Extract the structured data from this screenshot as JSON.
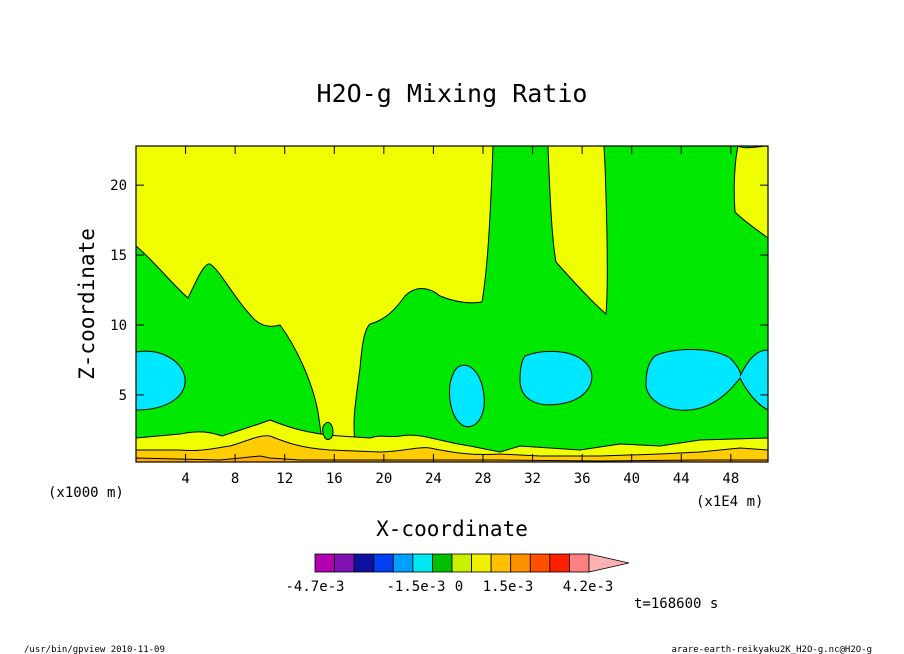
{
  "chart_data": {
    "type": "heatmap",
    "title": "H2O-g Mixing Ratio",
    "xlabel": "X-coordinate",
    "ylabel": "Z-coordinate",
    "x_unit": "(x1E4 m)",
    "y_unit": "(x1000 m)",
    "xlim": [
      0,
      51
    ],
    "ylim": [
      0.2,
      22.8
    ],
    "xticks": [
      4,
      8,
      12,
      16,
      20,
      24,
      28,
      32,
      36,
      40,
      44,
      48
    ],
    "yticks": [
      5,
      10,
      15,
      20
    ],
    "time_label": "t=168600 s",
    "colorbar": {
      "labels": [
        "-4.7e-3",
        "-1.5e-3",
        "0",
        "1.5e-3",
        "4.2e-3"
      ],
      "colors": [
        "#b000b0",
        "#8010b0",
        "#1010a0",
        "#0040f0",
        "#00a0ff",
        "#00e8f0",
        "#00c000",
        "#c8f000",
        "#f0f000",
        "#ffc000",
        "#ff9000",
        "#ff5000",
        "#ff2000",
        "#ff8080",
        "#ffb0b0"
      ]
    },
    "fields": [
      {
        "name": "yellow",
        "color": "#f0ff00"
      },
      {
        "name": "green",
        "color": "#00e800"
      },
      {
        "name": "cyan",
        "color": "#00e8ff"
      },
      {
        "name": "amber",
        "color": "#ffcc00"
      },
      {
        "name": "orange",
        "color": "#ffaa00"
      }
    ]
  },
  "footer": {
    "left": "/usr/bin/gpview  2010-11-09",
    "right": "arare-earth-reikyaku2K_H2O-g.nc@H2O-g"
  }
}
